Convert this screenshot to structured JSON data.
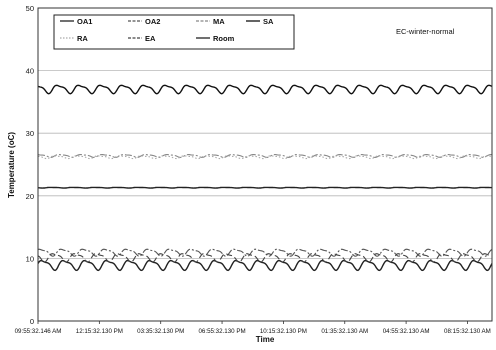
{
  "chart_data": {
    "type": "line",
    "annotation": "EC-winter-normal",
    "xlabel": "Time",
    "ylabel": "Temperature (oC)",
    "ylim": [
      0,
      50
    ],
    "yticks": [
      0,
      10,
      20,
      30,
      40,
      50
    ],
    "xticks": [
      "09:55:32.146 AM",
      "12:15:32.130 PM",
      "03:35:32.130 PM",
      "06:55:32.130 PM",
      "10:15:32.130 PM",
      "01:35:32.130 AM",
      "04:55:32.130 AM",
      "08:15:32.130 AM"
    ],
    "grid": "horizontal",
    "legend_position": "top-left",
    "series": [
      {
        "name": "OA1",
        "style": "solid",
        "color": "#222222",
        "mean": 9.0,
        "amplitude": 0.7
      },
      {
        "name": "OA2",
        "style": "dashdot",
        "color": "#555555",
        "mean": 11.0,
        "amplitude": 0.5
      },
      {
        "name": "MA",
        "style": "dashdot",
        "color": "#888888",
        "mean": 26.4,
        "amplitude": 0.2
      },
      {
        "name": "SA",
        "style": "solid",
        "color": "#111111",
        "mean": 37.1,
        "amplitude": 0.6
      },
      {
        "name": "RA",
        "style": "dotted",
        "color": "#aaaaaa",
        "mean": 26.2,
        "amplitude": 0.2
      },
      {
        "name": "EA",
        "style": "dashed",
        "color": "#444444",
        "mean": 10.2,
        "amplitude": 0.6
      },
      {
        "name": "Room",
        "style": "solid",
        "color": "#222222",
        "mean": 21.3,
        "amplitude": 0.05
      }
    ]
  }
}
